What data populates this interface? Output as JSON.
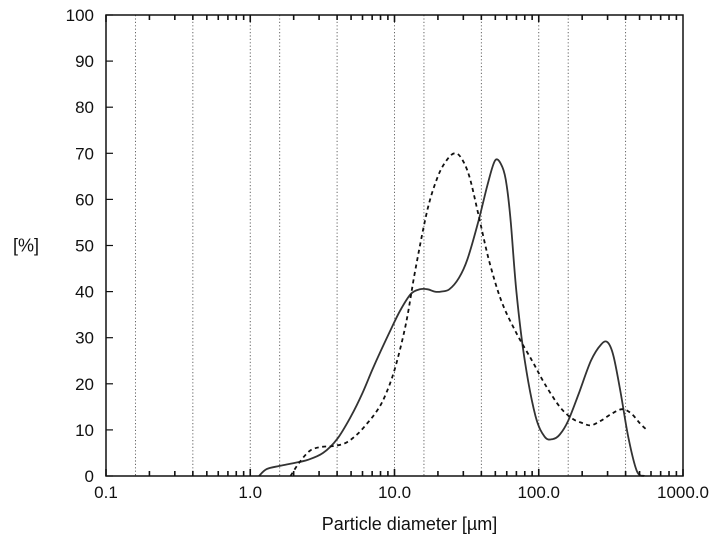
{
  "chart_data": {
    "type": "line",
    "title": "",
    "xlabel": "Particle diameter [µm]",
    "ylabel": "[%]",
    "xscale": "log",
    "xlim": [
      0.1,
      1000
    ],
    "ylim": [
      0,
      100
    ],
    "grid": "vertical dotted lines at decade subdivisions",
    "legend": "none",
    "x_tick_labels": [
      "0.1",
      "1.0",
      "10.0",
      "100.0",
      "1000.0"
    ],
    "y_tick_labels": [
      "0",
      "10",
      "20",
      "30",
      "40",
      "50",
      "60",
      "70",
      "80",
      "90",
      "100"
    ],
    "series": [
      {
        "style": "solid",
        "color": "#333333",
        "x": [
          1.15,
          1.3,
          1.6,
          2.0,
          2.5,
          3.2,
          4.0,
          5.0,
          6.0,
          7.0,
          8.0,
          9.5,
          11,
          13,
          15,
          17,
          19,
          21,
          24,
          28,
          32,
          38,
          44,
          50,
          56,
          60,
          64,
          70,
          80,
          95,
          110,
          125,
          140,
          160,
          190,
          230,
          270,
          300,
          330,
          370,
          420,
          480,
          540
        ],
        "y": [
          0,
          1.5,
          2.2,
          2.8,
          3.5,
          5,
          8,
          13,
          18,
          23,
          27,
          32,
          36,
          39.5,
          40.5,
          40.5,
          40,
          40,
          40.5,
          43,
          47,
          55,
          63,
          68.5,
          67,
          63,
          55,
          40,
          25,
          13,
          8.5,
          8,
          9,
          12,
          18,
          25,
          28.5,
          29,
          26,
          18,
          8,
          1,
          0
        ]
      },
      {
        "style": "dashed",
        "color": "#111111",
        "x": [
          1.9,
          2.2,
          2.6,
          3.1,
          3.8,
          4.6,
          5.5,
          6.5,
          7.5,
          8.5,
          10,
          12,
          14,
          17,
          20,
          23,
          26,
          29,
          33,
          38,
          45,
          55,
          70,
          90,
          110,
          140,
          170,
          200,
          230,
          270,
          320,
          380,
          440,
          500,
          560
        ],
        "y": [
          0,
          3,
          5.5,
          6.3,
          6.5,
          7.2,
          9,
          11.5,
          14,
          17,
          23,
          33,
          45,
          58,
          65,
          68.5,
          70,
          69,
          65,
          57,
          47,
          38,
          31,
          25,
          20,
          15,
          12.5,
          11.5,
          11,
          12,
          13.5,
          14.5,
          13.5,
          11.5,
          10
        ]
      }
    ]
  }
}
